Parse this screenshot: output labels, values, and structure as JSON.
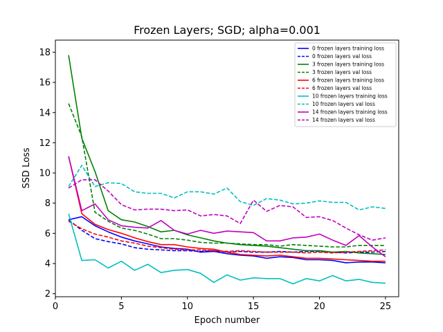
{
  "chart_data": {
    "type": "line",
    "title": "Frozen Layers; SGD; alpha=0.001",
    "xlabel": "Epoch number",
    "ylabel": "SSD Loss",
    "xlim": [
      0,
      26
    ],
    "ylim": [
      1.8,
      18.8
    ],
    "xticks": [
      0,
      5,
      10,
      15,
      20,
      25
    ],
    "yticks": [
      2,
      4,
      6,
      8,
      10,
      12,
      14,
      16,
      18
    ],
    "grid": false,
    "legend_position": "top-right",
    "x": [
      1,
      2,
      3,
      4,
      5,
      6,
      7,
      8,
      9,
      10,
      11,
      12,
      13,
      14,
      15,
      16,
      17,
      18,
      19,
      20,
      21,
      22,
      23,
      24,
      25
    ],
    "series": [
      {
        "name": "0 frozen layers training loss",
        "color": "#0000ff",
        "dash": "solid",
        "values": [
          6.9,
          7.1,
          6.5,
          6.1,
          5.75,
          5.5,
          5.3,
          5.1,
          5.0,
          4.95,
          4.75,
          4.8,
          4.65,
          4.55,
          4.5,
          4.35,
          4.45,
          4.4,
          4.25,
          4.25,
          4.2,
          4.05,
          4.1,
          4.1,
          4.05
        ]
      },
      {
        "name": "0 frozen layers val loss",
        "color": "#0000ff",
        "dash": "dashed",
        "values": [
          6.9,
          6.2,
          5.65,
          5.45,
          5.3,
          5.05,
          4.95,
          4.9,
          4.85,
          4.85,
          4.8,
          4.85,
          4.75,
          4.8,
          4.75,
          4.75,
          4.8,
          4.75,
          4.8,
          4.8,
          4.75,
          4.7,
          4.75,
          4.75,
          4.8
        ]
      },
      {
        "name": "3 frozen layers training loss",
        "color": "#008000",
        "dash": "solid",
        "values": [
          17.8,
          12.3,
          10.1,
          7.5,
          6.9,
          6.75,
          6.45,
          6.1,
          6.2,
          5.9,
          5.7,
          5.5,
          5.35,
          5.25,
          5.2,
          5.15,
          5.05,
          4.95,
          4.85,
          4.85,
          4.75,
          4.8,
          4.7,
          4.65,
          4.6
        ]
      },
      {
        "name": "3 frozen layers val loss",
        "color": "#008000",
        "dash": "dashed",
        "values": [
          14.6,
          12.4,
          7.4,
          6.8,
          6.35,
          6.2,
          5.95,
          5.65,
          5.65,
          5.55,
          5.4,
          5.35,
          5.35,
          5.3,
          5.25,
          5.25,
          5.15,
          5.25,
          5.2,
          5.15,
          5.1,
          5.1,
          5.2,
          5.2,
          5.2
        ]
      },
      {
        "name": "6 frozen layers training loss",
        "color": "#ff0000",
        "dash": "solid",
        "values": [
          11.1,
          7.3,
          6.6,
          6.25,
          6.0,
          5.7,
          5.45,
          5.25,
          5.25,
          5.1,
          5.0,
          4.95,
          4.75,
          4.6,
          4.55,
          4.5,
          4.55,
          4.45,
          4.35,
          4.35,
          4.3,
          4.25,
          4.2,
          4.15,
          4.15
        ]
      },
      {
        "name": "6 frozen layers val loss",
        "color": "#ff0000",
        "dash": "dashed",
        "values": [
          6.8,
          6.3,
          5.95,
          5.75,
          5.5,
          5.35,
          5.15,
          5.05,
          4.95,
          4.9,
          4.9,
          4.85,
          4.8,
          4.85,
          4.8,
          4.75,
          4.75,
          4.75,
          4.7,
          4.75,
          4.7,
          4.75,
          4.8,
          4.85,
          4.9
        ]
      },
      {
        "name": "10 frozen layers training loss",
        "color": "#00bfbf",
        "dash": "solid",
        "values": [
          7.3,
          4.2,
          4.25,
          3.7,
          4.15,
          3.55,
          3.95,
          3.4,
          3.55,
          3.6,
          3.35,
          2.75,
          3.25,
          2.9,
          3.05,
          3.0,
          3.0,
          2.65,
          3.0,
          2.85,
          3.2,
          2.85,
          2.95,
          2.75,
          2.7
        ]
      },
      {
        "name": "10 frozen layers val loss",
        "color": "#00bfbf",
        "dash": "dashed",
        "values": [
          9.1,
          10.5,
          9.1,
          9.35,
          9.3,
          8.75,
          8.65,
          8.65,
          8.35,
          8.75,
          8.75,
          8.6,
          9.0,
          8.1,
          7.85,
          8.3,
          8.2,
          7.95,
          8.0,
          8.15,
          8.05,
          8.05,
          7.55,
          7.75,
          7.65
        ]
      },
      {
        "name": "14 frozen layers training loss",
        "color": "#bf00bf",
        "dash": "solid",
        "values": [
          11.1,
          7.5,
          7.95,
          6.9,
          6.5,
          6.4,
          6.35,
          6.85,
          6.2,
          5.95,
          6.2,
          6.0,
          6.15,
          6.1,
          6.05,
          5.5,
          5.5,
          5.7,
          5.75,
          5.95,
          5.55,
          5.2,
          5.85,
          5.1,
          4.45
        ]
      },
      {
        "name": "14 frozen layers val loss",
        "color": "#bf00bf",
        "dash": "dashed",
        "values": [
          9.0,
          9.55,
          9.55,
          8.8,
          7.9,
          7.55,
          7.6,
          7.6,
          7.5,
          7.55,
          7.15,
          7.25,
          7.15,
          6.65,
          8.2,
          7.45,
          7.85,
          7.75,
          7.05,
          7.1,
          6.85,
          6.35,
          5.9,
          5.55,
          5.7
        ]
      }
    ]
  }
}
